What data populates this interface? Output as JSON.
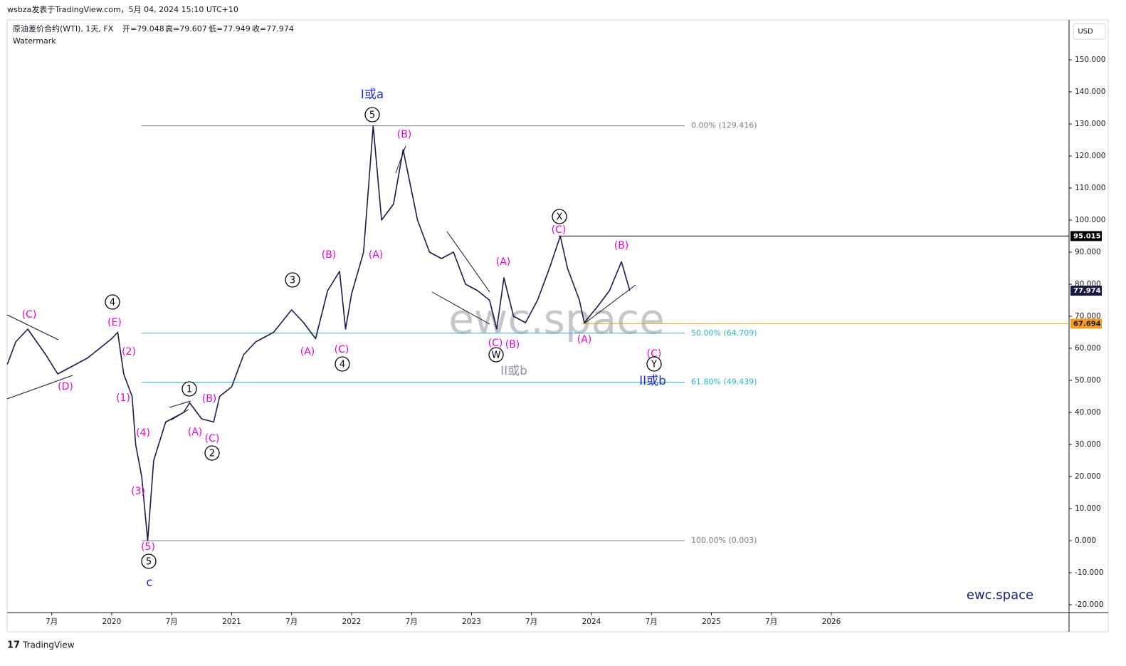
{
  "header": {
    "publisher": "wsbza发表于TradingView.com，5月 04, 2024 15:10 UTC+10",
    "symbol": "原油差价合约(WTI), 1天, FX",
    "ohlc": [
      "开=79.048",
      "高=79.607",
      "低=77.949",
      "收=77.974"
    ],
    "watermark_label": "Watermark"
  },
  "currency": "USD",
  "watermark": "ewc.space",
  "signature": "ewc.space",
  "footer": "TradingView",
  "chart_data": {
    "type": "line",
    "color": "#1b1a4a",
    "x": [
      2019.13,
      2019.2,
      2019.3,
      2019.45,
      2019.55,
      2019.7,
      2019.8,
      2019.9,
      2020.0,
      2020.05,
      2020.1,
      2020.17,
      2020.2,
      2020.25,
      2020.3,
      2020.35,
      2020.45,
      2020.6,
      2020.65,
      2020.75,
      2020.85,
      2020.9,
      2021.0,
      2021.1,
      2021.2,
      2021.35,
      2021.5,
      2021.6,
      2021.7,
      2021.8,
      2021.9,
      2021.95,
      2022.0,
      2022.1,
      2022.18,
      2022.25,
      2022.35,
      2022.43,
      2022.55,
      2022.65,
      2022.75,
      2022.85,
      2022.95,
      2023.05,
      2023.15,
      2023.21,
      2023.27,
      2023.35,
      2023.45,
      2023.55,
      2023.65,
      2023.74,
      2023.8,
      2023.9,
      2023.94,
      2024.05,
      2024.15,
      2024.25,
      2024.32
    ],
    "values": [
      55,
      62,
      66,
      58,
      52,
      55,
      57,
      60,
      63,
      65,
      52,
      45,
      30,
      20,
      0.003,
      25,
      37,
      40,
      43,
      38,
      37,
      45,
      48,
      58,
      62,
      65,
      72,
      68,
      63,
      78,
      84,
      66,
      77,
      90,
      129.416,
      100,
      105,
      122,
      100,
      90,
      88,
      90,
      80,
      78,
      75,
      66,
      82,
      70,
      68,
      75,
      85,
      95,
      85,
      75,
      68,
      73,
      78,
      87,
      77.974
    ],
    "xlim": [
      2019.128,
      2027.982
    ],
    "xticks": [
      {
        "value": 2019.5,
        "label": "7月"
      },
      2020,
      {
        "value": 2020.5,
        "label": "7月"
      },
      2021,
      {
        "value": 2021.5,
        "label": "7月"
      },
      2022,
      {
        "value": 2022.5,
        "label": "7月"
      },
      2023,
      {
        "value": 2023.5,
        "label": "7月"
      },
      2024,
      {
        "value": 2024.5,
        "label": "7月"
      },
      2025,
      {
        "value": 2025.5,
        "label": "7月"
      },
      2026
    ],
    "ylim": [
      -22.44,
      162.44
    ],
    "yticks": [
      {
        "value": 150,
        "label": "150.000"
      },
      {
        "value": 140,
        "label": "140.000"
      },
      {
        "value": 130,
        "label": "130.000"
      },
      {
        "value": 120,
        "label": "120.000"
      },
      {
        "value": 110,
        "label": "110.000"
      },
      {
        "value": 100,
        "label": "100.000"
      },
      {
        "value": 90,
        "label": "90.000"
      },
      {
        "value": 80,
        "label": "80.000"
      },
      {
        "value": 70,
        "label": "70.000"
      },
      {
        "value": 60,
        "label": "60.000"
      },
      {
        "value": 50,
        "label": "50.000"
      },
      {
        "value": 40,
        "label": "40.000"
      },
      {
        "value": 30,
        "label": "30.000"
      },
      {
        "value": 20,
        "label": "20.000"
      },
      {
        "value": 10,
        "label": "10.000"
      },
      {
        "value": 0,
        "label": "0.000"
      },
      {
        "value": -10,
        "label": "-10.000"
      },
      {
        "value": -20,
        "label": "-20.000"
      }
    ],
    "fib_levels": [
      {
        "value": 129.416,
        "label": "0.00% (129.416)",
        "color": "#787b86"
      },
      {
        "value": 64.709,
        "label": "50.00% (64.709)",
        "color": "#26b5c8"
      },
      {
        "value": 49.439,
        "label": "61.80% (49.439)",
        "color": "#26b5c8"
      },
      {
        "value": 0.003,
        "label": "100.00% (0.003)",
        "color": "#787b86"
      }
    ],
    "price_lines": [
      {
        "value": 95.015,
        "color": "#000000",
        "line": true
      },
      {
        "value": 77.974,
        "color": "#131741",
        "line": false
      },
      {
        "value": 67.694,
        "color": "#f59d1a",
        "line": true
      }
    ],
    "annotations": [
      {
        "text": "(C)",
        "color": "#e600d8"
      },
      {
        "text": "(D)",
        "color": "#e600d8"
      },
      {
        "text": "(E)",
        "color": "#e600d8"
      },
      {
        "text": "(2)",
        "color": "#e600d8"
      },
      {
        "text": "(1)",
        "color": "#e600d8"
      },
      {
        "text": "(4)",
        "color": "#e600d8"
      },
      {
        "text": "(3)",
        "color": "#e600d8"
      },
      {
        "text": "(5)",
        "color": "#e600d8"
      },
      {
        "text": "(A)",
        "color": "#e600d8"
      },
      {
        "text": "(B)",
        "color": "#e600d8"
      },
      {
        "text": "(C)",
        "color": "#e600d8"
      },
      {
        "text": "(A)",
        "color": "#e600d8"
      },
      {
        "text": "(B)",
        "color": "#e600d8"
      },
      {
        "text": "(C)",
        "color": "#e600d8"
      },
      {
        "text": "(A)",
        "color": "#e600d8"
      },
      {
        "text": "(B)",
        "color": "#e600d8"
      },
      {
        "text": "(A)",
        "color": "#e600d8"
      },
      {
        "text": "(C)",
        "color": "#e600d8"
      },
      {
        "text": "(B)",
        "color": "#e600d8"
      },
      {
        "text": "(C)",
        "color": "#e600d8"
      },
      {
        "text": "(A)",
        "color": "#e600d8"
      },
      {
        "text": "(B)",
        "color": "#e600d8"
      },
      {
        "text": "(C)",
        "color": "#e600d8"
      },
      {
        "text": "4",
        "color": "#000000",
        "circled": true
      },
      {
        "text": "3",
        "color": "#000000",
        "circled": true
      },
      {
        "text": "4",
        "color": "#000000",
        "circled": true
      },
      {
        "text": "1",
        "color": "#000000",
        "circled": true
      },
      {
        "text": "2",
        "color": "#000000",
        "circled": true
      },
      {
        "text": "5",
        "color": "#000000",
        "circled": true
      },
      {
        "text": "5",
        "color": "#000000",
        "circled": true
      },
      {
        "text": "W",
        "color": "#000000",
        "circled": true
      },
      {
        "text": "X",
        "color": "#000000",
        "circled": true
      },
      {
        "text": "Y",
        "color": "#000000",
        "circled": true
      },
      {
        "text": "I或a",
        "color": "#1a2fd6"
      },
      {
        "text": "c",
        "color": "#1a2fd6"
      },
      {
        "text": "II或b",
        "color": "#1a2fd6"
      },
      {
        "text": "II或b",
        "color": "#8f939e"
      }
    ]
  }
}
